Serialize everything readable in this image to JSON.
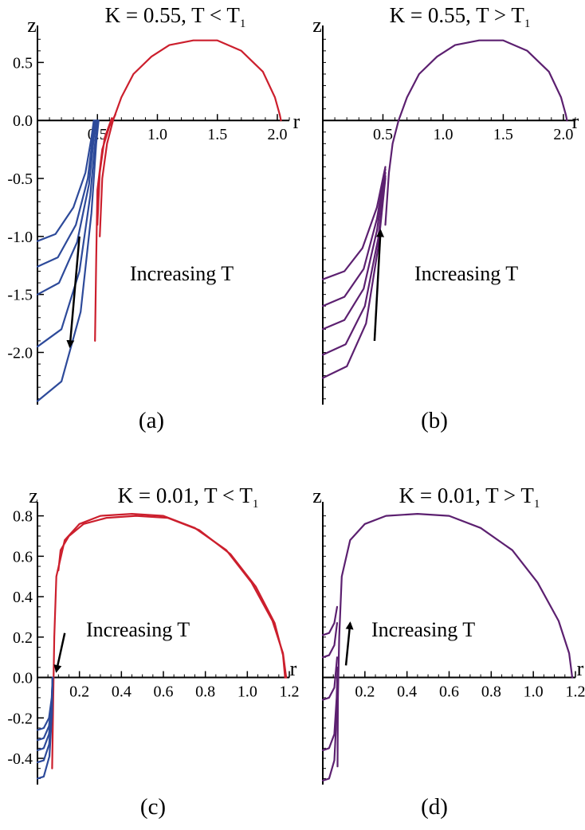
{
  "figure": {
    "description_labels": [
      "(a)",
      "(b)",
      "(c)",
      "(d)"
    ]
  },
  "colors": {
    "red": "#cc1f2d",
    "blue": "#2d4a9a",
    "purple": "#5c2070",
    "axis": "#000000"
  },
  "chart_data": [
    {
      "type": "line",
      "panel": "(a)",
      "title": "K = 0.55, T < T",
      "title_sub": "1",
      "xlabel": "r",
      "ylabel": "z",
      "xlim": [
        0,
        2.1
      ],
      "ylim": [
        -2.45,
        0.75
      ],
      "xticks": [
        0.5,
        1.0,
        1.5,
        2.0
      ],
      "xtick_labels": [
        "0.5",
        "1.0",
        "1.5",
        "2.0"
      ],
      "yticks": [
        0.5,
        0.0,
        -0.5,
        -1.0,
        -1.5,
        -2.0
      ],
      "ytick_labels": [
        "0.5",
        "0.0",
        "-0.5",
        "-1.0",
        "-1.5",
        "-2.0"
      ],
      "annotation": "Increasing T",
      "arrow": {
        "from": [
          0.35,
          -1.0
        ],
        "to": [
          0.27,
          -1.95
        ]
      },
      "series": [
        {
          "name": "red-1",
          "color": "red",
          "points": [
            [
              0.52,
              -1.0
            ],
            [
              0.54,
              -0.5
            ],
            [
              0.58,
              -0.2
            ],
            [
              0.63,
              0.0
            ],
            [
              0.7,
              0.2
            ],
            [
              0.8,
              0.4
            ],
            [
              0.95,
              0.55
            ],
            [
              1.1,
              0.65
            ],
            [
              1.3,
              0.69
            ],
            [
              1.5,
              0.69
            ],
            [
              1.7,
              0.6
            ],
            [
              1.88,
              0.42
            ],
            [
              1.98,
              0.2
            ],
            [
              2.02,
              0.05
            ],
            [
              2.03,
              0.0
            ]
          ]
        },
        {
          "name": "red-2",
          "color": "red",
          "points": [
            [
              0.48,
              -1.9
            ],
            [
              0.49,
              -1.2
            ],
            [
              0.5,
              -0.6
            ],
            [
              0.54,
              -0.25
            ],
            [
              0.6,
              -0.05
            ],
            [
              0.65,
              0.05
            ]
          ]
        },
        {
          "name": "red-3",
          "color": "red",
          "points": [
            [
              0.5,
              -0.9
            ],
            [
              0.52,
              -0.45
            ],
            [
              0.56,
              -0.15
            ],
            [
              0.62,
              0.02
            ]
          ]
        },
        {
          "name": "blue-1",
          "color": "blue",
          "points": [
            [
              0.0,
              -1.04
            ],
            [
              0.15,
              -0.98
            ],
            [
              0.3,
              -0.75
            ],
            [
              0.4,
              -0.45
            ],
            [
              0.45,
              -0.15
            ],
            [
              0.47,
              0.0
            ]
          ]
        },
        {
          "name": "blue-2",
          "color": "blue",
          "points": [
            [
              0.0,
              -1.26
            ],
            [
              0.17,
              -1.18
            ],
            [
              0.32,
              -0.9
            ],
            [
              0.42,
              -0.5
            ],
            [
              0.46,
              -0.15
            ],
            [
              0.48,
              0.0
            ]
          ]
        },
        {
          "name": "blue-3",
          "color": "blue",
          "points": [
            [
              0.0,
              -1.5
            ],
            [
              0.18,
              -1.4
            ],
            [
              0.33,
              -1.05
            ],
            [
              0.43,
              -0.55
            ],
            [
              0.47,
              -0.15
            ],
            [
              0.49,
              0.0
            ]
          ]
        },
        {
          "name": "blue-4",
          "color": "blue",
          "points": [
            [
              0.0,
              -1.95
            ],
            [
              0.2,
              -1.8
            ],
            [
              0.35,
              -1.3
            ],
            [
              0.44,
              -0.65
            ],
            [
              0.48,
              -0.2
            ],
            [
              0.5,
              0.0
            ]
          ]
        },
        {
          "name": "blue-5",
          "color": "blue",
          "points": [
            [
              0.0,
              -2.42
            ],
            [
              0.2,
              -2.25
            ],
            [
              0.36,
              -1.65
            ],
            [
              0.45,
              -0.8
            ],
            [
              0.49,
              -0.2
            ],
            [
              0.51,
              0.0
            ]
          ]
        }
      ]
    },
    {
      "type": "line",
      "panel": "(b)",
      "title": "K = 0.55, T > T",
      "title_sub": "1",
      "xlabel": "r",
      "ylabel": "z",
      "xlim": [
        0,
        2.1
      ],
      "ylim": [
        -2.45,
        0.75
      ],
      "xticks": [
        0.5,
        1.0,
        1.5,
        2.0
      ],
      "xtick_labels": [
        "0.5",
        "1.0",
        "1.5",
        "2.0"
      ],
      "yticks": [],
      "ytick_labels": [],
      "annotation": "Increasing T",
      "arrow": {
        "from": [
          0.43,
          -1.9
        ],
        "to": [
          0.48,
          -0.95
        ]
      },
      "series": [
        {
          "name": "purple-main",
          "color": "purple",
          "points": [
            [
              0.52,
              -0.9
            ],
            [
              0.55,
              -0.45
            ],
            [
              0.58,
              -0.2
            ],
            [
              0.63,
              0.0
            ],
            [
              0.7,
              0.2
            ],
            [
              0.8,
              0.4
            ],
            [
              0.95,
              0.55
            ],
            [
              1.1,
              0.65
            ],
            [
              1.3,
              0.69
            ],
            [
              1.5,
              0.69
            ],
            [
              1.7,
              0.6
            ],
            [
              1.88,
              0.42
            ],
            [
              1.98,
              0.2
            ],
            [
              2.02,
              0.05
            ],
            [
              2.03,
              0.0
            ]
          ]
        },
        {
          "name": "purple-1",
          "color": "purple",
          "points": [
            [
              0.0,
              -1.37
            ],
            [
              0.18,
              -1.3
            ],
            [
              0.33,
              -1.1
            ],
            [
              0.45,
              -0.75
            ],
            [
              0.52,
              -0.4
            ]
          ]
        },
        {
          "name": "purple-2",
          "color": "purple",
          "points": [
            [
              0.0,
              -1.6
            ],
            [
              0.18,
              -1.52
            ],
            [
              0.34,
              -1.28
            ],
            [
              0.45,
              -0.85
            ],
            [
              0.52,
              -0.42
            ]
          ]
        },
        {
          "name": "purple-3",
          "color": "purple",
          "points": [
            [
              0.0,
              -1.8
            ],
            [
              0.18,
              -1.72
            ],
            [
              0.34,
              -1.45
            ],
            [
              0.45,
              -0.95
            ],
            [
              0.52,
              -0.45
            ]
          ]
        },
        {
          "name": "purple-4",
          "color": "purple",
          "points": [
            [
              0.0,
              -2.02
            ],
            [
              0.19,
              -1.93
            ],
            [
              0.35,
              -1.6
            ],
            [
              0.46,
              -1.02
            ],
            [
              0.52,
              -0.48
            ]
          ]
        },
        {
          "name": "purple-5",
          "color": "purple",
          "points": [
            [
              0.0,
              -2.22
            ],
            [
              0.2,
              -2.12
            ],
            [
              0.36,
              -1.75
            ],
            [
              0.46,
              -1.1
            ],
            [
              0.52,
              -0.5
            ]
          ]
        }
      ]
    },
    {
      "type": "line",
      "panel": "(c)",
      "title": "K = 0.01, T < T",
      "title_sub": "1",
      "xlabel": "r",
      "ylabel": "z",
      "xlim": [
        0,
        1.2
      ],
      "ylim": [
        -0.53,
        0.83
      ],
      "xticks": [
        0.2,
        0.4,
        0.6,
        0.8,
        1.0,
        1.2
      ],
      "xtick_labels": [
        "0.2",
        "0.4",
        "0.6",
        "0.8",
        "1.0",
        "1.2"
      ],
      "yticks": [
        0.8,
        0.6,
        0.4,
        0.2,
        0.0,
        -0.2,
        -0.4
      ],
      "ytick_labels": [
        "0.8",
        "0.6",
        "0.4",
        "0.2",
        "0.0",
        "-0.2",
        "-0.4"
      ],
      "annotation": "Increasing T",
      "arrow": {
        "from": [
          0.13,
          0.22
        ],
        "to": [
          0.09,
          0.03
        ]
      },
      "series": [
        {
          "name": "red-1",
          "color": "red",
          "points": [
            [
              0.07,
              -0.45
            ],
            [
              0.075,
              -0.1
            ],
            [
              0.08,
              0.2
            ],
            [
              0.09,
              0.5
            ],
            [
              0.13,
              0.68
            ],
            [
              0.2,
              0.76
            ],
            [
              0.3,
              0.8
            ],
            [
              0.45,
              0.81
            ],
            [
              0.6,
              0.8
            ],
            [
              0.75,
              0.74
            ],
            [
              0.9,
              0.63
            ],
            [
              1.02,
              0.47
            ],
            [
              1.12,
              0.28
            ],
            [
              1.17,
              0.12
            ],
            [
              1.185,
              0.0
            ]
          ]
        },
        {
          "name": "red-2",
          "color": "red",
          "points": [
            [
              0.1,
              0.53
            ],
            [
              0.11,
              0.63
            ],
            [
              0.15,
              0.7
            ],
            [
              0.22,
              0.76
            ],
            [
              0.33,
              0.79
            ],
            [
              0.47,
              0.8
            ],
            [
              0.62,
              0.79
            ],
            [
              0.77,
              0.73
            ],
            [
              0.92,
              0.61
            ],
            [
              1.04,
              0.45
            ],
            [
              1.13,
              0.27
            ],
            [
              1.17,
              0.11
            ],
            [
              1.18,
              0.0
            ]
          ]
        },
        {
          "name": "blue-1",
          "color": "blue",
          "points": [
            [
              0.0,
              -0.26
            ],
            [
              0.03,
              -0.25
            ],
            [
              0.055,
              -0.2
            ],
            [
              0.068,
              -0.1
            ],
            [
              0.072,
              0.0
            ]
          ]
        },
        {
          "name": "blue-2",
          "color": "blue",
          "points": [
            [
              0.0,
              -0.31
            ],
            [
              0.03,
              -0.3
            ],
            [
              0.055,
              -0.24
            ],
            [
              0.068,
              -0.12
            ],
            [
              0.072,
              0.0
            ]
          ]
        },
        {
          "name": "blue-3",
          "color": "blue",
          "points": [
            [
              0.0,
              -0.36
            ],
            [
              0.03,
              -0.35
            ],
            [
              0.055,
              -0.28
            ],
            [
              0.068,
              -0.14
            ],
            [
              0.072,
              0.0
            ]
          ]
        },
        {
          "name": "blue-4",
          "color": "blue",
          "points": [
            [
              0.0,
              -0.42
            ],
            [
              0.03,
              -0.41
            ],
            [
              0.056,
              -0.33
            ],
            [
              0.068,
              -0.16
            ],
            [
              0.072,
              0.0
            ]
          ]
        },
        {
          "name": "blue-5",
          "color": "blue",
          "points": [
            [
              0.0,
              -0.5
            ],
            [
              0.03,
              -0.49
            ],
            [
              0.057,
              -0.39
            ],
            [
              0.069,
              -0.18
            ],
            [
              0.072,
              0.0
            ]
          ]
        }
      ]
    },
    {
      "type": "line",
      "panel": "(d)",
      "title": "K = 0.01, T > T",
      "title_sub": "1",
      "xlabel": "r",
      "ylabel": "z",
      "xlim": [
        0,
        1.2
      ],
      "ylim": [
        -0.53,
        0.83
      ],
      "xticks": [
        0.2,
        0.4,
        0.6,
        0.8,
        1.0,
        1.2
      ],
      "xtick_labels": [
        "0.2",
        "0.4",
        "0.6",
        "0.8",
        "1.0",
        "1.2"
      ],
      "yticks": [],
      "ytick_labels": [],
      "annotation": "Increasing T",
      "arrow": {
        "from": [
          0.11,
          0.06
        ],
        "to": [
          0.13,
          0.27
        ]
      },
      "series": [
        {
          "name": "purple-main",
          "color": "purple",
          "points": [
            [
              0.07,
              -0.44
            ],
            [
              0.072,
              -0.1
            ],
            [
              0.078,
              0.2
            ],
            [
              0.09,
              0.5
            ],
            [
              0.13,
              0.68
            ],
            [
              0.2,
              0.76
            ],
            [
              0.3,
              0.8
            ],
            [
              0.45,
              0.81
            ],
            [
              0.6,
              0.8
            ],
            [
              0.75,
              0.74
            ],
            [
              0.9,
              0.63
            ],
            [
              1.02,
              0.47
            ],
            [
              1.12,
              0.28
            ],
            [
              1.17,
              0.12
            ],
            [
              1.185,
              0.0
            ]
          ]
        },
        {
          "name": "purple-1",
          "color": "purple",
          "points": [
            [
              0.0,
              0.21
            ],
            [
              0.03,
              0.22
            ],
            [
              0.055,
              0.27
            ],
            [
              0.068,
              0.35
            ]
          ]
        },
        {
          "name": "purple-2",
          "color": "purple",
          "points": [
            [
              0.0,
              0.1
            ],
            [
              0.03,
              0.11
            ],
            [
              0.055,
              0.16
            ],
            [
              0.068,
              0.27
            ]
          ]
        },
        {
          "name": "purple-3",
          "color": "purple",
          "points": [
            [
              0.0,
              -0.11
            ],
            [
              0.03,
              -0.1
            ],
            [
              0.055,
              -0.05
            ],
            [
              0.068,
              0.1
            ]
          ]
        },
        {
          "name": "purple-4",
          "color": "purple",
          "points": [
            [
              0.0,
              -0.36
            ],
            [
              0.03,
              -0.35
            ],
            [
              0.055,
              -0.28
            ],
            [
              0.066,
              -0.1
            ],
            [
              0.07,
              0.05
            ]
          ]
        },
        {
          "name": "purple-5",
          "color": "purple",
          "points": [
            [
              0.0,
              -0.51
            ],
            [
              0.03,
              -0.5
            ],
            [
              0.055,
              -0.41
            ],
            [
              0.066,
              -0.18
            ],
            [
              0.07,
              0.0
            ]
          ]
        }
      ]
    }
  ]
}
